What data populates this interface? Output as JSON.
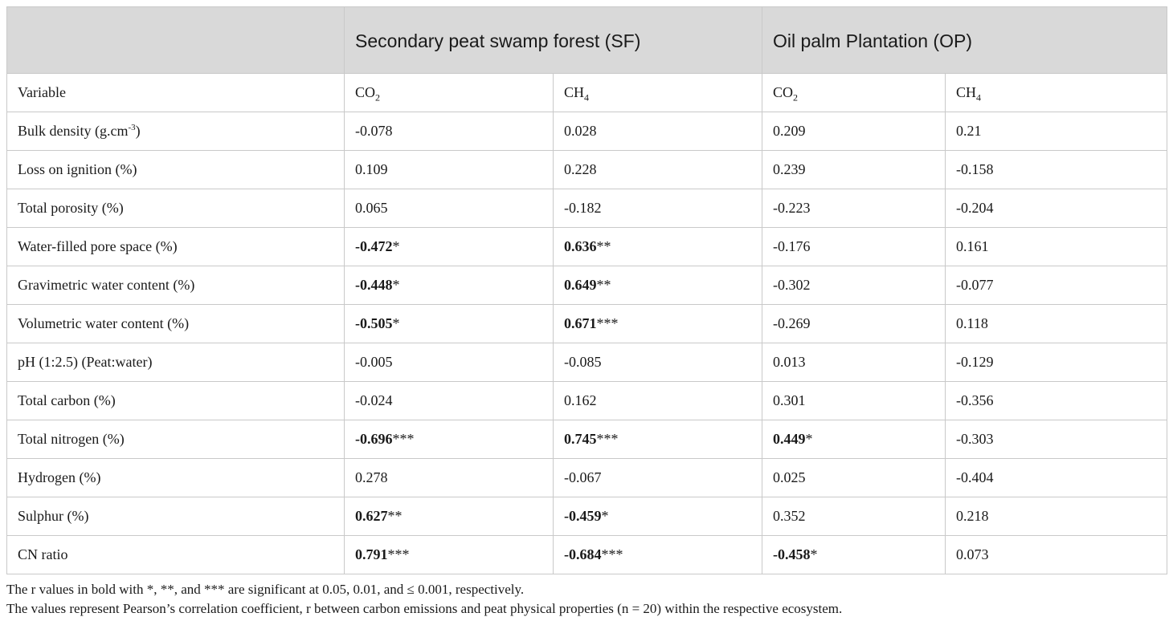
{
  "header": {
    "blank": "",
    "group_sf": "Secondary peat swamp forest (SF)",
    "group_op": "Oil palm Plantation (OP)"
  },
  "subheader": {
    "variable": "Variable",
    "sf_co2": {
      "base": "CO",
      "sub": "2"
    },
    "sf_ch4": {
      "base": "CH",
      "sub": "4"
    },
    "op_co2": {
      "base": "CO",
      "sub": "2"
    },
    "op_ch4": {
      "base": "CH",
      "sub": "4"
    }
  },
  "rows": [
    {
      "variable": "Bulk density (g.cm",
      "variable_sup": "-3",
      "variable_tail": ")",
      "cells": [
        {
          "v": "-0.078",
          "s": "",
          "bold": false
        },
        {
          "v": "0.028",
          "s": "",
          "bold": false
        },
        {
          "v": "0.209",
          "s": "",
          "bold": false
        },
        {
          "v": "0.21",
          "s": "",
          "bold": false
        }
      ]
    },
    {
      "variable": "Loss on ignition (%)",
      "variable_sup": "",
      "variable_tail": "",
      "cells": [
        {
          "v": "0.109",
          "s": "",
          "bold": false
        },
        {
          "v": "0.228",
          "s": "",
          "bold": false
        },
        {
          "v": "0.239",
          "s": "",
          "bold": false
        },
        {
          "v": "-0.158",
          "s": "",
          "bold": false
        }
      ]
    },
    {
      "variable": "Total porosity (%)",
      "variable_sup": "",
      "variable_tail": "",
      "cells": [
        {
          "v": "0.065",
          "s": "",
          "bold": false
        },
        {
          "v": "-0.182",
          "s": "",
          "bold": false
        },
        {
          "v": "-0.223",
          "s": "",
          "bold": false
        },
        {
          "v": "-0.204",
          "s": "",
          "bold": false
        }
      ]
    },
    {
      "variable": "Water-filled pore space (%)",
      "variable_sup": "",
      "variable_tail": "",
      "cells": [
        {
          "v": "-0.472",
          "s": "*",
          "bold": true
        },
        {
          "v": "0.636",
          "s": "**",
          "bold": true
        },
        {
          "v": "-0.176",
          "s": "",
          "bold": false
        },
        {
          "v": "0.161",
          "s": "",
          "bold": false
        }
      ]
    },
    {
      "variable": "Gravimetric water content (%)",
      "variable_sup": "",
      "variable_tail": "",
      "cells": [
        {
          "v": "-0.448",
          "s": "*",
          "bold": true
        },
        {
          "v": "0.649",
          "s": "**",
          "bold": true
        },
        {
          "v": "-0.302",
          "s": "",
          "bold": false
        },
        {
          "v": "-0.077",
          "s": "",
          "bold": false
        }
      ]
    },
    {
      "variable": "Volumetric water content (%)",
      "variable_sup": "",
      "variable_tail": "",
      "cells": [
        {
          "v": "-0.505",
          "s": "*",
          "bold": true
        },
        {
          "v": "0.671",
          "s": "***",
          "bold": true
        },
        {
          "v": "-0.269",
          "s": "",
          "bold": false
        },
        {
          "v": "0.118",
          "s": "",
          "bold": false
        }
      ]
    },
    {
      "variable": "pH (1:2.5) (Peat:water)",
      "variable_sup": "",
      "variable_tail": "",
      "cells": [
        {
          "v": "-0.005",
          "s": "",
          "bold": false
        },
        {
          "v": "-0.085",
          "s": "",
          "bold": false
        },
        {
          "v": "0.013",
          "s": "",
          "bold": false
        },
        {
          "v": "-0.129",
          "s": "",
          "bold": false
        }
      ]
    },
    {
      "variable": "Total carbon (%)",
      "variable_sup": "",
      "variable_tail": "",
      "cells": [
        {
          "v": "-0.024",
          "s": "",
          "bold": false
        },
        {
          "v": "0.162",
          "s": "",
          "bold": false
        },
        {
          "v": "0.301",
          "s": "",
          "bold": false
        },
        {
          "v": "-0.356",
          "s": "",
          "bold": false
        }
      ]
    },
    {
      "variable": "Total nitrogen (%)",
      "variable_sup": "",
      "variable_tail": "",
      "cells": [
        {
          "v": "-0.696",
          "s": "***",
          "bold": true
        },
        {
          "v": "0.745",
          "s": "***",
          "bold": true
        },
        {
          "v": "0.449",
          "s": "*",
          "bold": true
        },
        {
          "v": "-0.303",
          "s": "",
          "bold": false
        }
      ]
    },
    {
      "variable": "Hydrogen (%)",
      "variable_sup": "",
      "variable_tail": "",
      "cells": [
        {
          "v": "0.278",
          "s": "",
          "bold": false
        },
        {
          "v": "-0.067",
          "s": "",
          "bold": false
        },
        {
          "v": "0.025",
          "s": "",
          "bold": false
        },
        {
          "v": "-0.404",
          "s": "",
          "bold": false
        }
      ]
    },
    {
      "variable": "Sulphur (%)",
      "variable_sup": "",
      "variable_tail": "",
      "cells": [
        {
          "v": "0.627",
          "s": "**",
          "bold": true
        },
        {
          "v": "-0.459",
          "s": "*",
          "bold": true
        },
        {
          "v": "0.352",
          "s": "",
          "bold": false
        },
        {
          "v": "0.218",
          "s": "",
          "bold": false
        }
      ]
    },
    {
      "variable": "CN ratio",
      "variable_sup": "",
      "variable_tail": "",
      "cells": [
        {
          "v": "0.791",
          "s": "***",
          "bold": true
        },
        {
          "v": "-0.684",
          "s": "***",
          "bold": true
        },
        {
          "v": "-0.458",
          "s": "*",
          "bold": true
        },
        {
          "v": "0.073",
          "s": "",
          "bold": false
        }
      ]
    }
  ],
  "notes": [
    "The r values in bold with *, **, and *** are significant at 0.05, 0.01, and ≤ 0.001, respectively.",
    "The values represent Pearson’s correlation coefficient, r between carbon emissions and peat physical properties (n = 20) within the respective ecosystem."
  ]
}
